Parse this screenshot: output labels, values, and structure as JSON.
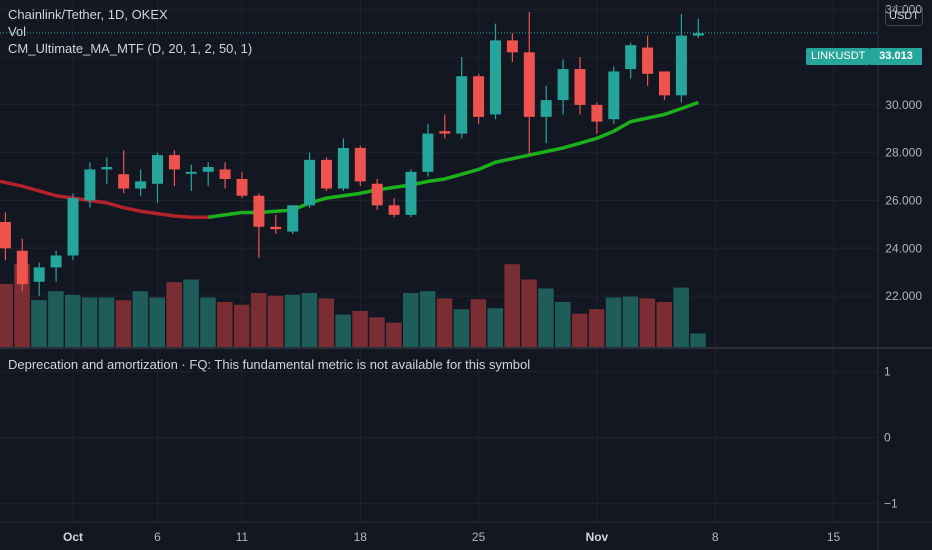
{
  "legend": {
    "symbol": "Chainlink/Tether, 1D, OKEX",
    "volume": "Vol",
    "indicator": "CM_Ultimate_MA_MTF (D, 20, 1, 2, 50, 1)"
  },
  "price_axis": {
    "unit": "USDT"
  },
  "last_price": {
    "symbol": "LINKUSDT",
    "value": "33.013",
    "numeric": 33.013
  },
  "indicator_message": "Deprecation and amortization · FQ: This fundamental metric is not available for this symbol",
  "colors": {
    "background": "#131722",
    "up": "#26a69a",
    "down": "#ef5350",
    "ma_down": "#b2222a",
    "ma_up": "#1db01d",
    "vol_up": "#1f5d5b",
    "vol_down": "#7a2e33",
    "grid": "#1e222d"
  },
  "chart_data": {
    "type": "candlestick",
    "x_ticks": [
      {
        "label": "Oct",
        "day": 1
      },
      {
        "label": "6",
        "day": 6
      },
      {
        "label": "11",
        "day": 11
      },
      {
        "label": "18",
        "day": 18
      },
      {
        "label": "25",
        "day": 25
      },
      {
        "label": "Nov",
        "day": 32
      },
      {
        "label": "8",
        "day": 39
      },
      {
        "label": "15",
        "day": 46
      }
    ],
    "y_ticks": [
      "34.000",
      "32.000",
      "30.000",
      "28.000",
      "26.000",
      "24.000",
      "22.000"
    ],
    "ylim": [
      21.0,
      34.5
    ],
    "lower_y_ticks": [
      "1",
      "0",
      "−1"
    ],
    "lower_ylim": [
      -1.1,
      1.1
    ],
    "candles": [
      {
        "day": -3,
        "o": 25.1,
        "h": 25.5,
        "l": 23.5,
        "c": 24.0
      },
      {
        "day": -2,
        "o": 23.9,
        "h": 24.4,
        "l": 22.2,
        "c": 22.5
      },
      {
        "day": -1,
        "o": 22.6,
        "h": 23.4,
        "l": 22.0,
        "c": 23.2
      },
      {
        "day": 0,
        "o": 23.2,
        "h": 23.9,
        "l": 22.6,
        "c": 23.7
      },
      {
        "day": 1,
        "o": 23.7,
        "h": 26.3,
        "l": 23.5,
        "c": 26.1
      },
      {
        "day": 2,
        "o": 26.0,
        "h": 27.6,
        "l": 25.7,
        "c": 27.3
      },
      {
        "day": 3,
        "o": 27.3,
        "h": 27.8,
        "l": 26.7,
        "c": 27.4
      },
      {
        "day": 4,
        "o": 27.1,
        "h": 28.1,
        "l": 26.3,
        "c": 26.5
      },
      {
        "day": 5,
        "o": 26.5,
        "h": 27.3,
        "l": 26.2,
        "c": 26.8
      },
      {
        "day": 6,
        "o": 26.7,
        "h": 28.0,
        "l": 25.9,
        "c": 27.9
      },
      {
        "day": 7,
        "o": 27.9,
        "h": 28.1,
        "l": 26.6,
        "c": 27.3
      },
      {
        "day": 8,
        "o": 27.2,
        "h": 27.5,
        "l": 26.4,
        "c": 27.2
      },
      {
        "day": 9,
        "o": 27.2,
        "h": 27.6,
        "l": 26.6,
        "c": 27.4
      },
      {
        "day": 10,
        "o": 27.3,
        "h": 27.6,
        "l": 26.5,
        "c": 26.9
      },
      {
        "day": 11,
        "o": 26.9,
        "h": 27.2,
        "l": 26.1,
        "c": 26.2
      },
      {
        "day": 12,
        "o": 26.2,
        "h": 26.3,
        "l": 23.6,
        "c": 24.9
      },
      {
        "day": 13,
        "o": 24.9,
        "h": 25.4,
        "l": 24.6,
        "c": 24.8
      },
      {
        "day": 14,
        "o": 24.7,
        "h": 25.8,
        "l": 24.6,
        "c": 25.8
      },
      {
        "day": 15,
        "o": 25.8,
        "h": 28.0,
        "l": 25.7,
        "c": 27.7
      },
      {
        "day": 16,
        "o": 27.7,
        "h": 27.8,
        "l": 26.4,
        "c": 26.5
      },
      {
        "day": 17,
        "o": 26.5,
        "h": 28.6,
        "l": 26.4,
        "c": 28.2
      },
      {
        "day": 18,
        "o": 28.2,
        "h": 28.3,
        "l": 26.6,
        "c": 26.8
      },
      {
        "day": 19,
        "o": 26.7,
        "h": 26.9,
        "l": 25.6,
        "c": 25.8
      },
      {
        "day": 20,
        "o": 25.8,
        "h": 26.1,
        "l": 25.3,
        "c": 25.4
      },
      {
        "day": 21,
        "o": 25.4,
        "h": 27.3,
        "l": 25.3,
        "c": 27.2
      },
      {
        "day": 22,
        "o": 27.2,
        "h": 29.2,
        "l": 27.0,
        "c": 28.8
      },
      {
        "day": 23,
        "o": 28.9,
        "h": 29.6,
        "l": 28.6,
        "c": 28.8
      },
      {
        "day": 24,
        "o": 28.8,
        "h": 32.0,
        "l": 28.6,
        "c": 31.2
      },
      {
        "day": 25,
        "o": 31.2,
        "h": 31.3,
        "l": 29.2,
        "c": 29.5
      },
      {
        "day": 26,
        "o": 29.6,
        "h": 33.4,
        "l": 29.4,
        "c": 32.7
      },
      {
        "day": 27,
        "o": 32.7,
        "h": 33.0,
        "l": 31.8,
        "c": 32.2
      },
      {
        "day": 28,
        "o": 32.2,
        "h": 33.9,
        "l": 27.9,
        "c": 29.5
      },
      {
        "day": 29,
        "o": 29.5,
        "h": 30.8,
        "l": 28.4,
        "c": 30.2
      },
      {
        "day": 30,
        "o": 30.2,
        "h": 31.9,
        "l": 29.6,
        "c": 31.5
      },
      {
        "day": 31,
        "o": 31.5,
        "h": 32.0,
        "l": 29.6,
        "c": 30.0
      },
      {
        "day": 32,
        "o": 30.0,
        "h": 30.1,
        "l": 28.8,
        "c": 29.3
      },
      {
        "day": 33,
        "o": 29.4,
        "h": 31.6,
        "l": 29.2,
        "c": 31.4
      },
      {
        "day": 34,
        "o": 31.5,
        "h": 32.6,
        "l": 31.1,
        "c": 32.5
      },
      {
        "day": 35,
        "o": 32.4,
        "h": 32.9,
        "l": 30.8,
        "c": 31.3
      },
      {
        "day": 36,
        "o": 31.4,
        "h": 31.4,
        "l": 30.2,
        "c": 30.4
      },
      {
        "day": 37,
        "o": 30.4,
        "h": 33.8,
        "l": 30.1,
        "c": 32.9
      },
      {
        "day": 38,
        "o": 32.9,
        "h": 33.6,
        "l": 32.8,
        "c": 33.0
      }
    ],
    "volume_relative": [
      0.7,
      0.92,
      0.52,
      0.62,
      0.58,
      0.55,
      0.55,
      0.52,
      0.62,
      0.55,
      0.72,
      0.75,
      0.55,
      0.5,
      0.47,
      0.6,
      0.57,
      0.58,
      0.6,
      0.54,
      0.36,
      0.4,
      0.33,
      0.27,
      0.6,
      0.62,
      0.54,
      0.42,
      0.53,
      0.43,
      0.92,
      0.75,
      0.65,
      0.5,
      0.37,
      0.42,
      0.55,
      0.56,
      0.54,
      0.5,
      0.66,
      0.15
    ],
    "moving_average": [
      {
        "day": -3,
        "v": 26.8
      },
      {
        "day": -2,
        "v": 26.6
      },
      {
        "day": -1,
        "v": 26.4
      },
      {
        "day": 0,
        "v": 26.2
      },
      {
        "day": 1,
        "v": 26.1
      },
      {
        "day": 2,
        "v": 26.0
      },
      {
        "day": 3,
        "v": 25.9
      },
      {
        "day": 4,
        "v": 25.7
      },
      {
        "day": 5,
        "v": 25.55
      },
      {
        "day": 6,
        "v": 25.45
      },
      {
        "day": 7,
        "v": 25.35
      },
      {
        "day": 8,
        "v": 25.3
      },
      {
        "day": 9,
        "v": 25.3
      },
      {
        "day": 10,
        "v": 25.4
      },
      {
        "day": 11,
        "v": 25.5
      },
      {
        "day": 12,
        "v": 25.5
      },
      {
        "day": 13,
        "v": 25.55
      },
      {
        "day": 14,
        "v": 25.6
      },
      {
        "day": 15,
        "v": 25.9
      },
      {
        "day": 16,
        "v": 26.1
      },
      {
        "day": 17,
        "v": 26.2
      },
      {
        "day": 18,
        "v": 26.3
      },
      {
        "day": 19,
        "v": 26.45
      },
      {
        "day": 20,
        "v": 26.55
      },
      {
        "day": 21,
        "v": 26.65
      },
      {
        "day": 22,
        "v": 26.8
      },
      {
        "day": 23,
        "v": 26.9
      },
      {
        "day": 24,
        "v": 27.1
      },
      {
        "day": 25,
        "v": 27.3
      },
      {
        "day": 26,
        "v": 27.6
      },
      {
        "day": 27,
        "v": 27.75
      },
      {
        "day": 28,
        "v": 27.9
      },
      {
        "day": 29,
        "v": 28.05
      },
      {
        "day": 30,
        "v": 28.2
      },
      {
        "day": 31,
        "v": 28.4
      },
      {
        "day": 32,
        "v": 28.6
      },
      {
        "day": 33,
        "v": 28.9
      },
      {
        "day": 34,
        "v": 29.3
      },
      {
        "day": 35,
        "v": 29.45
      },
      {
        "day": 36,
        "v": 29.6
      },
      {
        "day": 37,
        "v": 29.85
      },
      {
        "day": 38,
        "v": 30.1
      }
    ],
    "ma_turns_up_at_day": 9
  }
}
